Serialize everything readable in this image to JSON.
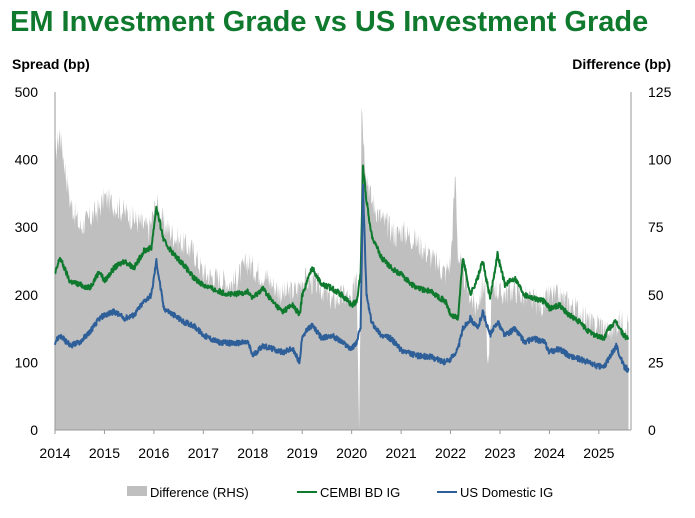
{
  "chart_data": {
    "type": "area+line",
    "title": "EM Investment Grade vs US Investment Grade",
    "ylabel_left": "Spread (bp)",
    "ylabel_right": "Difference (bp)",
    "ylim_left": [
      0,
      500
    ],
    "ylim_right": [
      0,
      125
    ],
    "yticks_left": [
      "0",
      "100",
      "200",
      "300",
      "400",
      "500"
    ],
    "yticks_right": [
      "0",
      "25",
      "50",
      "75",
      "100",
      "125"
    ],
    "xlim": [
      2014,
      2025.65
    ],
    "xticks": [
      "2014",
      "2015",
      "2016",
      "2017",
      "2018",
      "2019",
      "2020",
      "2021",
      "2022",
      "2023",
      "2024",
      "2025"
    ],
    "legend_position": "bottom",
    "colors": {
      "difference": "#bfbfbf",
      "cembi": "#0f7a2e",
      "us": "#2e5f99"
    },
    "series": [
      {
        "name": "Difference (RHS)",
        "axis": "right",
        "style": "area",
        "x": [
          2014.0,
          2014.1,
          2014.3,
          2014.5,
          2014.7,
          2014.9,
          2015.0,
          2015.3,
          2015.6,
          2015.9,
          2016.05,
          2016.2,
          2016.5,
          2016.8,
          2017.0,
          2017.3,
          2017.6,
          2017.9,
          2018.0,
          2018.3,
          2018.6,
          2018.9,
          2019.0,
          2019.3,
          2019.6,
          2019.9,
          2020.0,
          2020.1,
          2020.15,
          2020.18,
          2020.2,
          2020.25,
          2020.3,
          2020.4,
          2020.6,
          2020.9,
          2021.0,
          2021.3,
          2021.6,
          2021.9,
          2022.0,
          2022.1,
          2022.15,
          2022.3,
          2022.5,
          2022.7,
          2022.75,
          2022.85,
          2023.0,
          2023.3,
          2023.6,
          2023.9,
          2024.0,
          2024.3,
          2024.6,
          2024.9,
          2025.0,
          2025.2,
          2025.4,
          2025.6
        ],
        "values": [
          102,
          110,
          85,
          75,
          78,
          82,
          86,
          82,
          78,
          74,
          84,
          76,
          70,
          66,
          58,
          56,
          54,
          62,
          60,
          56,
          50,
          52,
          56,
          54,
          48,
          50,
          46,
          60,
          2,
          50,
          122,
          105,
          95,
          85,
          78,
          72,
          74,
          70,
          64,
          58,
          62,
          95,
          65,
          55,
          45,
          55,
          20,
          55,
          50,
          52,
          48,
          46,
          50,
          48,
          44,
          38,
          40,
          36,
          40,
          40
        ]
      },
      {
        "name": "CEMBI BD IG",
        "axis": "left",
        "style": "line",
        "x": [
          2014.0,
          2014.1,
          2014.3,
          2014.5,
          2014.7,
          2014.9,
          2015.0,
          2015.2,
          2015.4,
          2015.6,
          2015.8,
          2015.95,
          2016.05,
          2016.2,
          2016.4,
          2016.6,
          2016.8,
          2017.0,
          2017.3,
          2017.6,
          2017.9,
          2018.0,
          2018.2,
          2018.4,
          2018.6,
          2018.8,
          2018.95,
          2019.0,
          2019.2,
          2019.4,
          2019.6,
          2019.8,
          2020.0,
          2020.1,
          2020.18,
          2020.23,
          2020.3,
          2020.4,
          2020.6,
          2020.8,
          2021.0,
          2021.3,
          2021.6,
          2021.9,
          2022.0,
          2022.15,
          2022.25,
          2022.4,
          2022.55,
          2022.65,
          2022.8,
          2022.95,
          2023.1,
          2023.3,
          2023.5,
          2023.7,
          2023.9,
          2024.0,
          2024.2,
          2024.4,
          2024.6,
          2024.8,
          2024.95,
          2025.1,
          2025.2,
          2025.35,
          2025.5,
          2025.6
        ],
        "values": [
          230,
          255,
          220,
          215,
          210,
          235,
          220,
          240,
          250,
          240,
          265,
          270,
          330,
          280,
          260,
          245,
          225,
          215,
          205,
          200,
          205,
          195,
          210,
          190,
          175,
          185,
          170,
          200,
          240,
          215,
          210,
          200,
          185,
          190,
          230,
          390,
          340,
          290,
          255,
          240,
          230,
          210,
          205,
          190,
          170,
          165,
          255,
          200,
          225,
          250,
          195,
          260,
          215,
          225,
          200,
          195,
          190,
          180,
          185,
          170,
          160,
          145,
          140,
          135,
          150,
          160,
          140,
          135
        ]
      },
      {
        "name": "US Domestic IG",
        "axis": "left",
        "style": "line",
        "x": [
          2014.0,
          2014.1,
          2014.3,
          2014.5,
          2014.7,
          2014.9,
          2015.0,
          2015.2,
          2015.4,
          2015.6,
          2015.8,
          2015.95,
          2016.05,
          2016.2,
          2016.4,
          2016.6,
          2016.8,
          2017.0,
          2017.3,
          2017.6,
          2017.9,
          2018.0,
          2018.2,
          2018.4,
          2018.6,
          2018.8,
          2018.95,
          2019.0,
          2019.2,
          2019.4,
          2019.6,
          2019.8,
          2020.0,
          2020.1,
          2020.18,
          2020.23,
          2020.3,
          2020.4,
          2020.6,
          2020.8,
          2021.0,
          2021.3,
          2021.6,
          2021.9,
          2022.0,
          2022.15,
          2022.25,
          2022.4,
          2022.55,
          2022.65,
          2022.8,
          2022.95,
          2023.1,
          2023.3,
          2023.5,
          2023.7,
          2023.9,
          2024.0,
          2024.2,
          2024.4,
          2024.6,
          2024.8,
          2024.95,
          2025.1,
          2025.2,
          2025.35,
          2025.5,
          2025.6
        ],
        "values": [
          130,
          140,
          125,
          130,
          145,
          165,
          170,
          175,
          165,
          170,
          190,
          200,
          250,
          180,
          170,
          160,
          155,
          140,
          130,
          128,
          130,
          110,
          125,
          120,
          115,
          120,
          100,
          140,
          155,
          135,
          140,
          130,
          120,
          130,
          150,
          360,
          200,
          160,
          140,
          135,
          118,
          110,
          108,
          100,
          105,
          120,
          150,
          165,
          150,
          175,
          140,
          160,
          140,
          150,
          130,
          135,
          130,
          115,
          120,
          110,
          105,
          100,
          95,
          93,
          105,
          125,
          95,
          88
        ]
      }
    ]
  }
}
